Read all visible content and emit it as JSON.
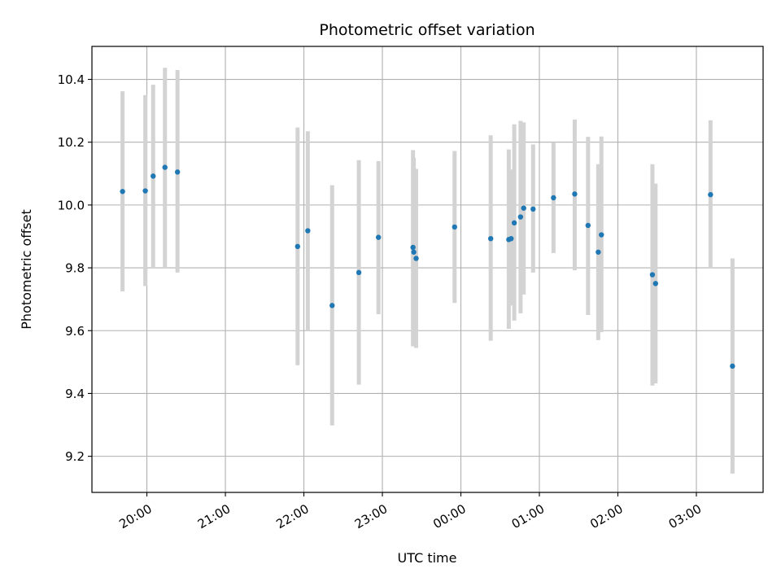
{
  "chart_data": {
    "type": "scatter",
    "title": "Photometric offset variation",
    "xlabel": "UTC time",
    "ylabel": "Photometric offset",
    "x_unit": "hours (UTC, continuing past midnight)",
    "xlim": [
      19.3,
      27.85
    ],
    "ylim": [
      9.085,
      10.505
    ],
    "x_ticks": [
      {
        "value": 20,
        "label": "20:00"
      },
      {
        "value": 21,
        "label": "21:00"
      },
      {
        "value": 22,
        "label": "22:00"
      },
      {
        "value": 23,
        "label": "23:00"
      },
      {
        "value": 24,
        "label": "00:00"
      },
      {
        "value": 25,
        "label": "01:00"
      },
      {
        "value": 26,
        "label": "02:00"
      },
      {
        "value": 27,
        "label": "03:00"
      }
    ],
    "y_ticks": [
      {
        "value": 9.2,
        "label": "9.2"
      },
      {
        "value": 9.4,
        "label": "9.4"
      },
      {
        "value": 9.6,
        "label": "9.6"
      },
      {
        "value": 9.8,
        "label": "9.8"
      },
      {
        "value": 10.0,
        "label": "10.0"
      },
      {
        "value": 10.2,
        "label": "10.2"
      },
      {
        "value": 10.4,
        "label": "10.4"
      }
    ],
    "grid": true,
    "marker_color": "#1f77b4",
    "errorbar_color": "#d3d3d3",
    "points": [
      {
        "x": 19.69,
        "y": 10.043,
        "ylo": 9.725,
        "yhi": 10.362
      },
      {
        "x": 19.98,
        "y": 10.045,
        "ylo": 9.742,
        "yhi": 10.35
      },
      {
        "x": 20.08,
        "y": 10.092,
        "ylo": 9.8,
        "yhi": 10.383
      },
      {
        "x": 20.23,
        "y": 10.12,
        "ylo": 9.8,
        "yhi": 10.437
      },
      {
        "x": 20.39,
        "y": 10.105,
        "ylo": 9.785,
        "yhi": 10.43
      },
      {
        "x": 21.92,
        "y": 9.868,
        "ylo": 9.49,
        "yhi": 10.247
      },
      {
        "x": 22.05,
        "y": 9.918,
        "ylo": 9.6,
        "yhi": 10.235
      },
      {
        "x": 22.36,
        "y": 9.68,
        "ylo": 9.298,
        "yhi": 10.063
      },
      {
        "x": 22.7,
        "y": 9.785,
        "ylo": 9.428,
        "yhi": 10.143
      },
      {
        "x": 22.95,
        "y": 9.897,
        "ylo": 9.652,
        "yhi": 10.14
      },
      {
        "x": 23.39,
        "y": 9.865,
        "ylo": 9.55,
        "yhi": 10.175
      },
      {
        "x": 23.4,
        "y": 9.85,
        "ylo": 9.555,
        "yhi": 10.15
      },
      {
        "x": 23.43,
        "y": 9.83,
        "ylo": 9.545,
        "yhi": 10.115
      },
      {
        "x": 23.92,
        "y": 9.93,
        "ylo": 9.688,
        "yhi": 10.172
      },
      {
        "x": 24.38,
        "y": 9.893,
        "ylo": 9.568,
        "yhi": 10.222
      },
      {
        "x": 24.61,
        "y": 9.89,
        "ylo": 9.606,
        "yhi": 10.177
      },
      {
        "x": 24.64,
        "y": 9.893,
        "ylo": 9.68,
        "yhi": 10.113
      },
      {
        "x": 24.68,
        "y": 9.943,
        "ylo": 9.632,
        "yhi": 10.257
      },
      {
        "x": 24.76,
        "y": 9.962,
        "ylo": 9.655,
        "yhi": 10.268
      },
      {
        "x": 24.8,
        "y": 9.99,
        "ylo": 9.715,
        "yhi": 10.263
      },
      {
        "x": 24.92,
        "y": 9.987,
        "ylo": 9.785,
        "yhi": 10.193
      },
      {
        "x": 25.18,
        "y": 10.023,
        "ylo": 9.847,
        "yhi": 10.2
      },
      {
        "x": 25.45,
        "y": 10.035,
        "ylo": 9.792,
        "yhi": 10.272
      },
      {
        "x": 25.62,
        "y": 9.935,
        "ylo": 9.65,
        "yhi": 10.217
      },
      {
        "x": 25.75,
        "y": 9.85,
        "ylo": 9.57,
        "yhi": 10.13
      },
      {
        "x": 25.79,
        "y": 9.905,
        "ylo": 9.595,
        "yhi": 10.218
      },
      {
        "x": 26.44,
        "y": 9.778,
        "ylo": 9.425,
        "yhi": 10.13
      },
      {
        "x": 26.48,
        "y": 9.75,
        "ylo": 9.432,
        "yhi": 10.068
      },
      {
        "x": 27.18,
        "y": 10.033,
        "ylo": 9.8,
        "yhi": 10.27
      },
      {
        "x": 27.46,
        "y": 9.487,
        "ylo": 9.145,
        "yhi": 9.83
      }
    ]
  }
}
